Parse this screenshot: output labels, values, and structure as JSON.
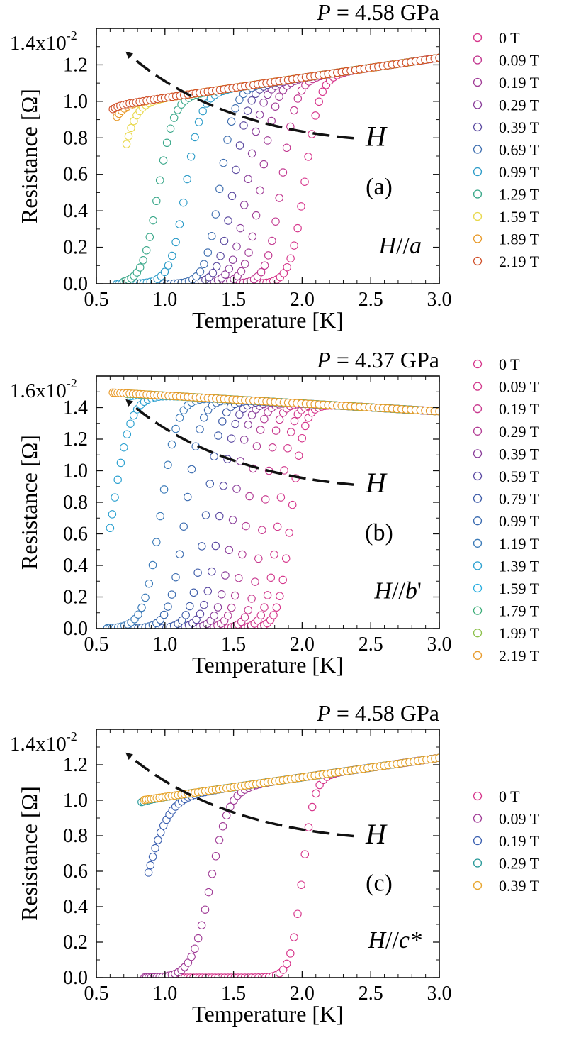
{
  "figure": {
    "x_axis_label": "Temperature [K]",
    "y_axis_label": "Resistance [Ω]"
  },
  "chart_data": [
    {
      "id": "a",
      "type": "scatter",
      "title": "P = 4.58 GPa",
      "title_var": "P",
      "title_rest": " = 4.58 GPa",
      "xlabel": "Temperature [K]",
      "ylabel": "Resistance [Ω]",
      "xlim": [
        0.5,
        3.0
      ],
      "ylim": [
        0.0,
        0.014
      ],
      "x_ticks": [
        "0.5",
        "1.0",
        "1.5",
        "2.0",
        "2.5",
        "3.0"
      ],
      "y_ticks": [
        "0.0",
        "0.2",
        "0.4",
        "0.6",
        "0.8",
        "1.0",
        "1.2"
      ],
      "y_top_label": "1.4x10",
      "y_exponent": "-2",
      "panel_label": "(a)",
      "field_dir": "H//a",
      "field_var": "H",
      "field_sep": "//",
      "field_axis": "a",
      "field_axis_suffix": "",
      "arrow_label": "H",
      "series": [
        {
          "name": "0 T",
          "color": "#d6338a",
          "Tc": 2.02,
          "width": 0.16,
          "Tmin": 1.05
        },
        {
          "name": "0.09 T",
          "color": "#c2378f",
          "Tc": 1.85,
          "width": 0.16,
          "Tmin": 0.95
        },
        {
          "name": "0.19 T",
          "color": "#a03b96",
          "Tc": 1.7,
          "width": 0.16,
          "Tmin": 0.85
        },
        {
          "name": "0.29 T",
          "color": "#8a3d9a",
          "Tc": 1.6,
          "width": 0.16,
          "Tmin": 0.8
        },
        {
          "name": "0.39 T",
          "color": "#5b4aa0",
          "Tc": 1.5,
          "width": 0.16,
          "Tmin": 0.75
        },
        {
          "name": "0.69 T",
          "color": "#3f6fb0",
          "Tc": 1.4,
          "width": 0.16,
          "Tmin": 0.7
        },
        {
          "name": "0.99 T",
          "color": "#2b9bc8",
          "Tc": 1.15,
          "width": 0.17,
          "Tmin": 0.65
        },
        {
          "name": "1.29 T",
          "color": "#3aa88a",
          "Tc": 0.95,
          "width": 0.17,
          "Tmin": 0.7
        },
        {
          "name": "1.59 T",
          "color": "#e8d84a",
          "Tc": 0.65,
          "width": 0.17,
          "Tmin": 0.72
        },
        {
          "name": "1.89 T",
          "color": "#e89a2a",
          "Tc": 0.5,
          "width": 0.17,
          "Tmin": 0.65
        },
        {
          "name": "2.19 T",
          "color": "#d0502a",
          "Tc": 0.4,
          "width": 0.17,
          "Tmin": 0.62
        }
      ]
    },
    {
      "id": "b",
      "type": "scatter",
      "title": "P = 4.37 GPa",
      "title_var": "P",
      "title_rest": " = 4.37 GPa",
      "xlabel": "Temperature [K]",
      "ylabel": "Resistance [Ω]",
      "xlim": [
        0.5,
        3.0
      ],
      "ylim": [
        0.0,
        0.016
      ],
      "x_ticks": [
        "0.5",
        "1.0",
        "1.5",
        "2.0",
        "2.5",
        "3.0"
      ],
      "y_ticks": [
        "0.0",
        "0.2",
        "0.4",
        "0.6",
        "0.8",
        "1.0",
        "1.2",
        "1.4"
      ],
      "y_top_label": "1.6x10",
      "y_exponent": "-2",
      "panel_label": "(b)",
      "field_dir": "H//b'",
      "field_var": "H",
      "field_sep": "//",
      "field_axis": "b",
      "field_axis_suffix": "'",
      "arrow_label": "H",
      "series": [
        {
          "name": "0 T",
          "color": "#d6338a",
          "Tc": 1.92,
          "width": 0.14,
          "Tmin": 1.2
        },
        {
          "name": "0.09 T",
          "color": "#d23a8d",
          "Tc": 1.83,
          "width": 0.14,
          "Tmin": 1.1
        },
        {
          "name": "0.19 T",
          "color": "#c8388e",
          "Tc": 1.72,
          "width": 0.14,
          "Tmin": 1.0
        },
        {
          "name": "0.29 T",
          "color": "#b23c94",
          "Tc": 1.6,
          "width": 0.15,
          "Tmin": 0.9
        },
        {
          "name": "0.39 T",
          "color": "#8a3d9a",
          "Tc": 1.5,
          "width": 0.15,
          "Tmin": 0.8
        },
        {
          "name": "0.59 T",
          "color": "#5a48a2",
          "Tc": 1.4,
          "width": 0.16,
          "Tmin": 0.7
        },
        {
          "name": "0.79 T",
          "color": "#3d5ba8",
          "Tc": 1.3,
          "width": 0.16,
          "Tmin": 0.6
        },
        {
          "name": "0.99 T",
          "color": "#3a6bb0",
          "Tc": 1.15,
          "width": 0.17,
          "Tmin": 0.58
        },
        {
          "name": "1.19 T",
          "color": "#3a7ab8",
          "Tc": 0.97,
          "width": 0.18,
          "Tmin": 0.58
        },
        {
          "name": "1.39 T",
          "color": "#2ba0d0",
          "Tc": 0.62,
          "width": 0.2,
          "Tmin": 0.6
        },
        {
          "name": "1.59 T",
          "color": "#2aaee0",
          "Tc": 0.45,
          "width": 0.2,
          "Tmin": 0.75
        },
        {
          "name": "1.79 T",
          "color": "#3fae7a",
          "Tc": 0.3,
          "width": 0.2,
          "Tmin": 0.72
        },
        {
          "name": "1.99 T",
          "color": "#8cc04a",
          "Tc": 0.1,
          "width": 0.2,
          "Tmin": 0.68
        },
        {
          "name": "2.19 T",
          "color": "#e89a2a",
          "Tc": -0.5,
          "width": 0.2,
          "Tmin": 0.62
        }
      ]
    },
    {
      "id": "c",
      "type": "scatter",
      "title": "P = 4.58 GPa",
      "title_var": "P",
      "title_rest": " = 4.58 GPa",
      "xlabel": "Temperature [K]",
      "ylabel": "Resistance [Ω]",
      "xlim": [
        0.5,
        3.0
      ],
      "ylim": [
        0.0,
        0.014
      ],
      "x_ticks": [
        "0.5",
        "1.0",
        "1.5",
        "2.0",
        "2.5",
        "3.0"
      ],
      "y_ticks": [
        "0.0",
        "0.2",
        "0.4",
        "0.6",
        "0.8",
        "1.0",
        "1.2"
      ],
      "y_top_label": "1.4x10",
      "y_exponent": "-2",
      "panel_label": "(c)",
      "field_dir": "H//c*",
      "field_var": "H",
      "field_sep": "//",
      "field_axis": "c*",
      "field_axis_suffix": "",
      "arrow_label": "H",
      "series": [
        {
          "name": "0 T",
          "color": "#d6338a",
          "Tc": 2.0,
          "width": 0.13,
          "Tmin": 1.0
        },
        {
          "name": "0.09 T",
          "color": "#a03b96",
          "Tc": 1.33,
          "width": 0.2,
          "Tmin": 0.85
        },
        {
          "name": "0.19 T",
          "color": "#3a5fb0",
          "Tc": 0.85,
          "width": 0.25,
          "Tmin": 0.88
        },
        {
          "name": "0.29 T",
          "color": "#2a9a9a",
          "Tc": 0.45,
          "width": 0.25,
          "Tmin": 0.83
        },
        {
          "name": "0.39 T",
          "color": "#e8a42a",
          "Tc": 0.2,
          "width": 0.25,
          "Tmin": 0.85
        }
      ]
    }
  ]
}
